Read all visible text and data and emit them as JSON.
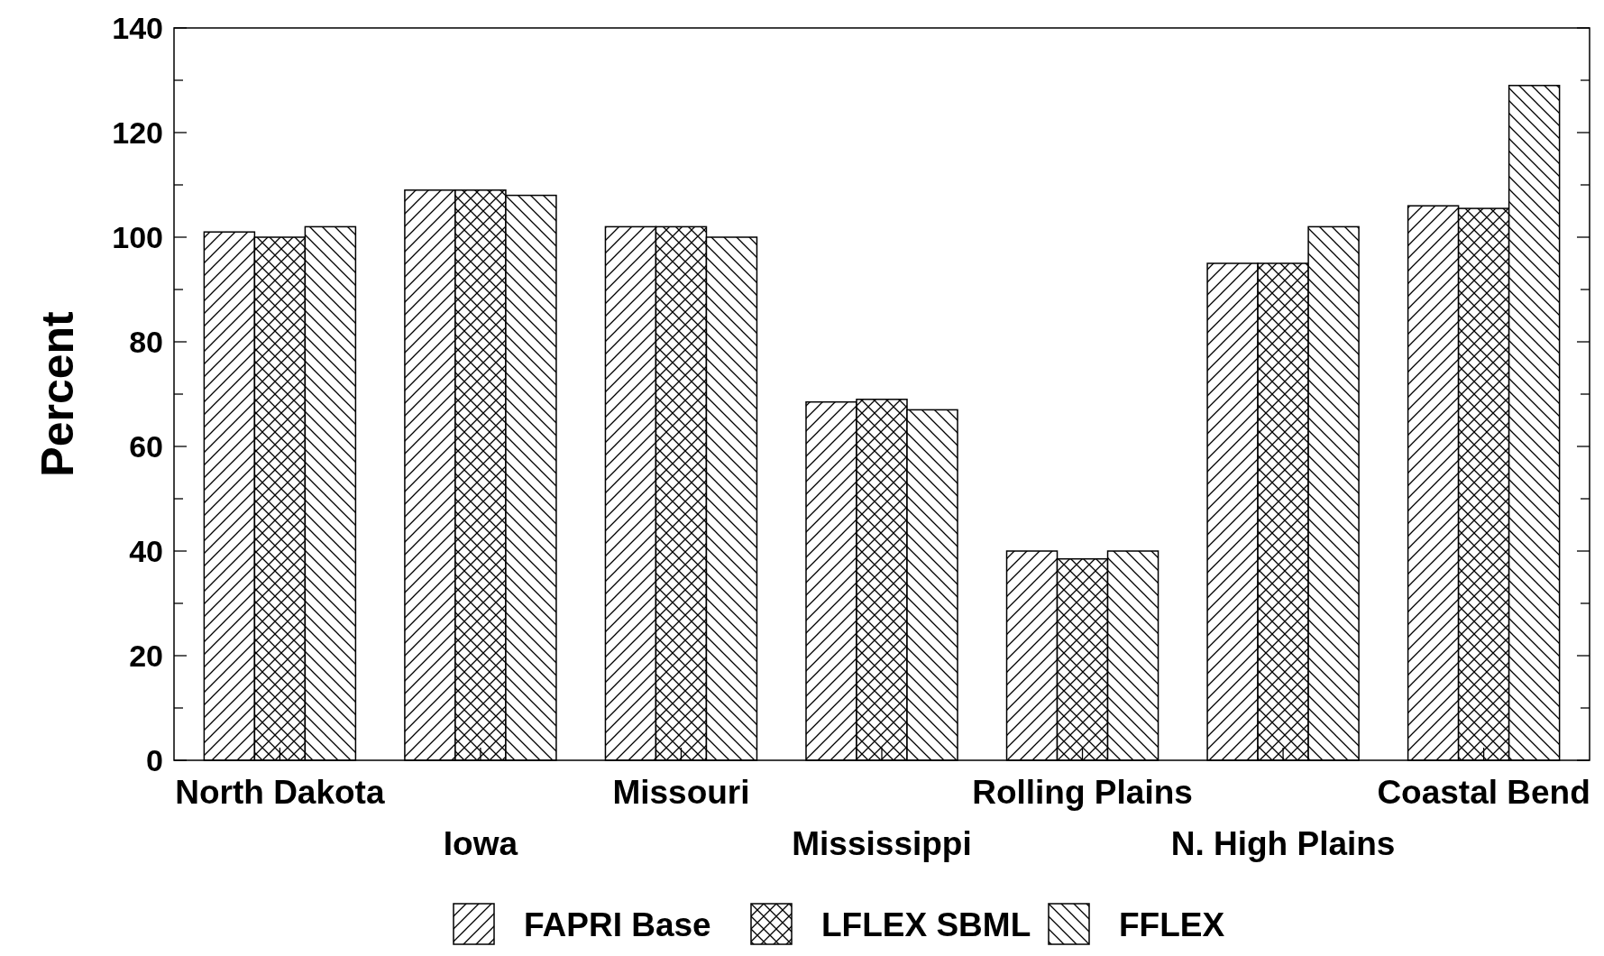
{
  "chart_data": {
    "type": "bar",
    "ylabel": "Percent",
    "categories": [
      "North Dakota",
      "Iowa",
      "Missouri",
      "Mississippi",
      "Rolling Plains",
      "N. High Plains",
      "Coastal Bend"
    ],
    "series": [
      {
        "name": "FAPRI Base",
        "color": "#000000",
        "values": [
          101,
          109,
          102,
          68.5,
          40,
          95,
          106
        ]
      },
      {
        "name": "LFLEX SBML",
        "color": "#000000",
        "values": [
          100,
          109,
          102,
          69,
          38.5,
          95,
          105.5
        ]
      },
      {
        "name": "FFLEX",
        "color": "#000000",
        "values": [
          102,
          108,
          100,
          67,
          40,
          102,
          129
        ]
      }
    ],
    "ylim": [
      0,
      140
    ],
    "yticks": [
      0,
      {
        "value": 10,
        "label": null
      },
      20,
      {
        "value": 30,
        "label": null
      },
      40,
      {
        "value": 50,
        "label": null
      },
      60,
      {
        "value": 70,
        "label": null
      },
      80,
      {
        "value": 90,
        "label": null
      },
      100,
      {
        "value": 110,
        "label": null
      },
      120,
      {
        "value": 130,
        "label": null
      },
      140
    ],
    "grid": false,
    "legend": "bottom"
  }
}
